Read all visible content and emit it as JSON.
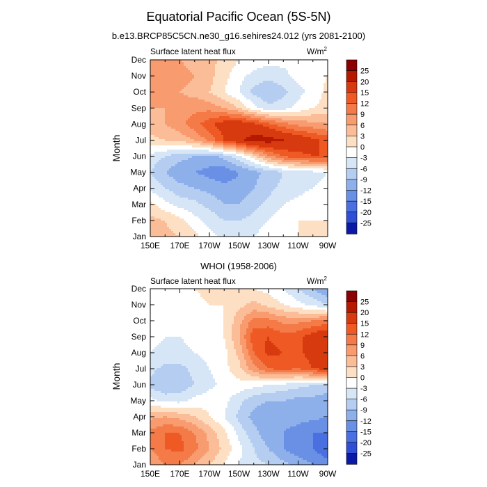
{
  "title": "Equatorial Pacific Ocean (5S-5N)",
  "chart_data": {
    "type": "heatmap",
    "x_ticks": [
      "150E",
      "170E",
      "170W",
      "150W",
      "130W",
      "110W",
      "90W"
    ],
    "y_ticks": [
      "Jan",
      "Feb",
      "Mar",
      "Apr",
      "May",
      "Jun",
      "Jul",
      "Aug",
      "Sep",
      "Oct",
      "Nov",
      "Dec"
    ],
    "ylabel": "Month",
    "colorbar": {
      "labels": [
        "25",
        "20",
        "15",
        "12",
        "9",
        "6",
        "3",
        "0",
        "-3",
        "-6",
        "-9",
        "-12",
        "-15",
        "-20",
        "-25"
      ],
      "colors": [
        "#8b0000",
        "#b51a00",
        "#d83a10",
        "#ef5a24",
        "#f47a48",
        "#f89c70",
        "#fbbd98",
        "#fde0c4",
        "#ffffff",
        "#d6e6f6",
        "#b4cdf0",
        "#8db0ea",
        "#6a90e6",
        "#4a6fe0",
        "#2f4fd6",
        "#0b1aa6"
      ]
    },
    "panels": [
      {
        "subtitle": "b.e13.BRCP85C5CN.ne30_g16.sehires24.012 (yrs 2081-2100)",
        "left_label": "Surface latent heat flux",
        "right_label": "W/m",
        "right_label_sup": "2",
        "nx": 13,
        "values": [
          [
            6,
            4,
            3,
            1,
            -2,
            -4,
            -5,
            -3,
            -1,
            0,
            0,
            0,
            1
          ],
          [
            4,
            3,
            1,
            -2,
            -4,
            -6,
            -6,
            -5,
            -3,
            -1,
            0,
            0,
            0
          ],
          [
            1,
            -2,
            -4,
            -5,
            -7,
            -9,
            -9,
            -7,
            -5,
            -3,
            -2,
            -1,
            0
          ],
          [
            -4,
            -6,
            -8,
            -9,
            -10,
            -11,
            -11,
            -9,
            -7,
            -5,
            -4,
            -3,
            -2
          ],
          [
            -6,
            -9,
            -11,
            -12,
            -13,
            -14,
            -12,
            -10,
            -8,
            -6,
            -5,
            -4,
            -3
          ],
          [
            -4,
            -6,
            -8,
            -9,
            -10,
            -8,
            -4,
            2,
            8,
            12,
            14,
            15,
            15
          ],
          [
            2,
            3,
            4,
            6,
            10,
            15,
            19,
            22,
            22,
            20,
            18,
            16,
            14
          ],
          [
            5,
            6,
            8,
            11,
            14,
            17,
            18,
            16,
            13,
            10,
            8,
            7,
            6
          ],
          [
            6,
            6,
            7,
            8,
            8,
            6,
            3,
            -2,
            -5,
            -4,
            -2,
            0,
            1
          ],
          [
            8,
            7,
            6,
            5,
            3,
            0,
            -3,
            -7,
            -9,
            -7,
            -4,
            -2,
            1
          ],
          [
            9,
            8,
            7,
            6,
            4,
            1,
            -2,
            -4,
            -5,
            -4,
            -2,
            -1,
            0
          ],
          [
            9,
            8,
            6,
            5,
            4,
            2,
            0,
            -1,
            -2,
            -2,
            -1,
            0,
            0
          ]
        ]
      },
      {
        "subtitle": "WHOI (1958-2006)",
        "left_label": "Surface latent heat flux",
        "right_label": "W/m",
        "right_label_sup": "2",
        "nx": 13,
        "values": [
          [
            6,
            9,
            9,
            6,
            3,
            0,
            -3,
            -5,
            -6,
            -8,
            -10,
            -12,
            -14
          ],
          [
            9,
            12,
            13,
            10,
            6,
            2,
            -2,
            -6,
            -9,
            -12,
            -14,
            -15,
            -17
          ],
          [
            10,
            12,
            12,
            9,
            5,
            1,
            -4,
            -8,
            -11,
            -12,
            -13,
            -15,
            -15
          ],
          [
            5,
            6,
            5,
            3,
            0,
            -3,
            -7,
            -10,
            -12,
            -11,
            -11,
            -11,
            -12
          ],
          [
            -2,
            -4,
            -4,
            -2,
            -1,
            -2,
            -5,
            -8,
            -9,
            -9,
            -10,
            -10,
            -11
          ],
          [
            -7,
            -9,
            -8,
            -6,
            -4,
            -2,
            -1,
            -2,
            -3,
            -4,
            -5,
            -6,
            -7
          ],
          [
            -5,
            -7,
            -7,
            -5,
            -3,
            -1,
            2,
            8,
            12,
            13,
            12,
            15,
            16
          ],
          [
            -3,
            -4,
            -4,
            -3,
            -2,
            -1,
            4,
            12,
            16,
            15,
            14,
            17,
            18
          ],
          [
            -2,
            -3,
            -3,
            -2,
            -1,
            0,
            6,
            14,
            15,
            13,
            14,
            17,
            19
          ],
          [
            -2,
            -2,
            -2,
            -1,
            -1,
            0,
            5,
            10,
            10,
            8,
            8,
            9,
            10
          ],
          [
            -2,
            -2,
            -1,
            -1,
            0,
            0,
            2,
            4,
            2,
            0,
            -2,
            -4,
            -6
          ],
          [
            -1,
            -1,
            0,
            0,
            1,
            1,
            1,
            0,
            -1,
            -3,
            -6,
            -9,
            -12
          ]
        ]
      }
    ]
  }
}
